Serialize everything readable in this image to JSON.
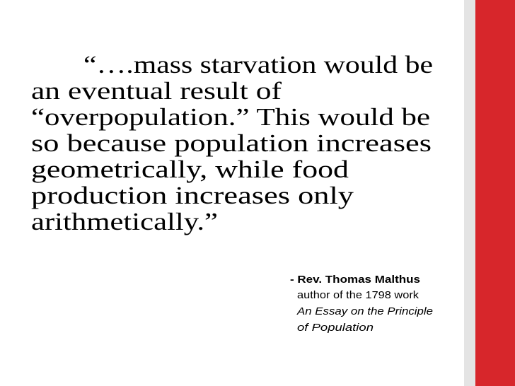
{
  "quote": {
    "lines": [
      "“….mass starvation would be",
      "an eventual result of",
      "“overpopulation.” This would be",
      "so because population increases",
      "geometrically, while food",
      "production increases only",
      "arithmetically.”"
    ]
  },
  "attribution": {
    "name": "- Rev. Thomas Malthus",
    "description": "author of the 1798 work",
    "work_lines": [
      "An Essay on the Principle",
      "of Population"
    ]
  }
}
